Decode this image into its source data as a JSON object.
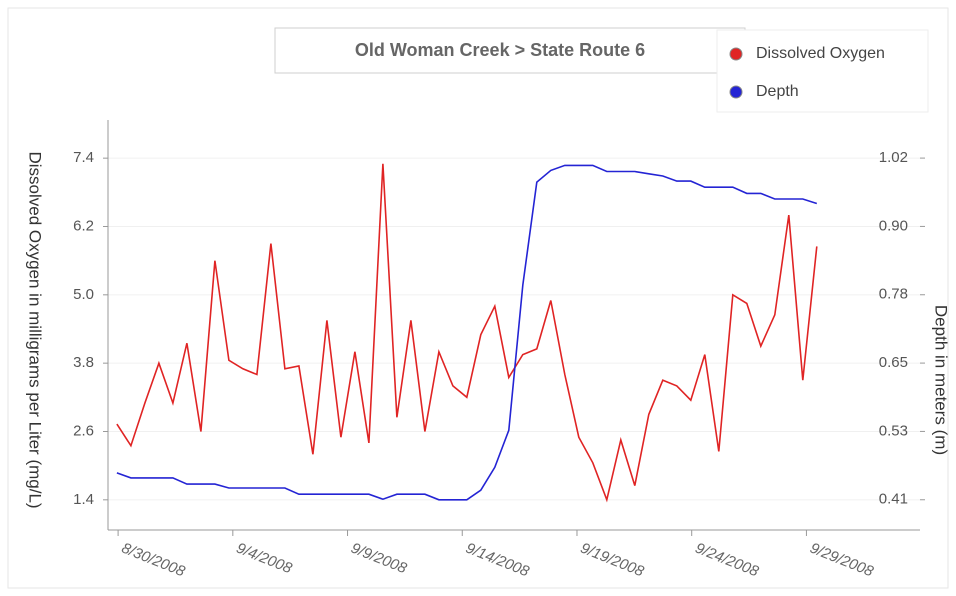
{
  "chart_data": {
    "type": "line",
    "title": "Old Woman Creek > State Route 6",
    "y_label": "Dissolved Oxygen in milligrams per Liter (mg/L)",
    "y2_label": "Depth in meters (m)",
    "x": [
      -0.05,
      0.56,
      1.17,
      1.78,
      2.39,
      3.0,
      3.61,
      4.22,
      4.83,
      5.44,
      6.05,
      6.66,
      7.27,
      7.88,
      8.49,
      9.1,
      9.71,
      10.32,
      10.93,
      11.54,
      12.15,
      12.76,
      13.37,
      13.98,
      14.59,
      15.2,
      15.81,
      16.42,
      17.03,
      17.64,
      18.25,
      18.86,
      19.47,
      20.08,
      20.69,
      21.3,
      21.91,
      22.52,
      23.13,
      23.74,
      24.35,
      24.96,
      25.57,
      26.18,
      26.79,
      27.4,
      28.01,
      28.62,
      29.23,
      29.84,
      30.45
    ],
    "xlim": [
      -0.44,
      34.95
    ],
    "xticks": [
      {
        "value": 0,
        "label": "8/30/2008"
      },
      {
        "value": 5,
        "label": "9/4/2008"
      },
      {
        "value": 10,
        "label": "9/9/2008"
      },
      {
        "value": 15,
        "label": "9/14/2008"
      },
      {
        "value": 20,
        "label": "9/19/2008"
      },
      {
        "value": 25,
        "label": "9/24/2008"
      },
      {
        "value": 30,
        "label": "9/29/2008"
      }
    ],
    "ylim": [
      0.87,
      8.07
    ],
    "yticks": [
      1.4,
      2.6,
      3.8,
      {
        "value": 5,
        "label": "5.0"
      },
      6.2,
      7.4
    ],
    "y2lim": [
      0.356,
      1.088
    ],
    "y2ticks": [
      0.41,
      {
        "value": 0.532,
        "label": "0.53"
      },
      {
        "value": 0.654,
        "label": "0.65"
      },
      {
        "value": 0.776,
        "label": "0.78"
      },
      {
        "value": 0.898,
        "label": "0.90"
      },
      1.02
    ],
    "grid": true,
    "legend": "top-right",
    "series": [
      {
        "name": "Dissolved Oxygen",
        "color": "#e02424",
        "values": [
          2.73,
          2.35,
          3.1,
          3.8,
          3.1,
          4.15,
          2.6,
          5.6,
          3.85,
          3.7,
          3.6,
          5.9,
          3.7,
          3.75,
          2.2,
          4.55,
          2.5,
          4.0,
          2.4,
          7.3,
          2.85,
          4.55,
          2.6,
          4.0,
          3.4,
          3.2,
          4.3,
          4.8,
          3.55,
          3.95,
          4.05,
          4.9,
          3.6,
          2.5,
          2.05,
          1.4,
          2.45,
          1.65,
          2.9,
          3.5,
          3.4,
          3.15,
          3.95,
          2.25,
          5.0,
          4.85,
          4.1,
          4.65,
          6.4,
          3.5,
          5.85
        ]
      },
      {
        "name": "Depth",
        "color": "#2424d4",
        "axis": "y2",
        "values": [
          0.458,
          0.449,
          0.449,
          0.449,
          0.449,
          0.438,
          0.438,
          0.438,
          0.431,
          0.431,
          0.431,
          0.431,
          0.431,
          0.42,
          0.42,
          0.42,
          0.42,
          0.42,
          0.42,
          0.411,
          0.42,
          0.42,
          0.42,
          0.41,
          0.41,
          0.41,
          0.427,
          0.468,
          0.534,
          0.793,
          0.977,
          0.998,
          1.007,
          1.007,
          1.007,
          0.996,
          0.996,
          0.996,
          0.992,
          0.988,
          0.979,
          0.979,
          0.968,
          0.968,
          0.968,
          0.957,
          0.957,
          0.947,
          0.947,
          0.947,
          0.939
        ]
      }
    ]
  }
}
